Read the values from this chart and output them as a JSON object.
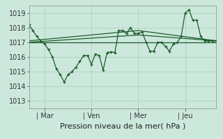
{
  "background_color": "#cce8dc",
  "grid_color": "#aaccbb",
  "line_color": "#1a5c28",
  "xlabel": "Pression niveau de la mer( hPa )",
  "ylim": [
    1012.5,
    1019.5
  ],
  "yticks": [
    1013,
    1014,
    1015,
    1016,
    1017,
    1018,
    1019
  ],
  "xtick_labels": [
    "| Mar",
    "| Ven",
    "| Mer",
    "| Jeu"
  ],
  "xtick_positions": [
    16,
    64,
    112,
    160
  ],
  "xlim": [
    0,
    192
  ],
  "series_x": [
    0,
    4,
    8,
    12,
    16,
    20,
    24,
    28,
    32,
    36,
    40,
    44,
    48,
    52,
    56,
    60,
    64,
    68,
    72,
    76,
    80,
    84,
    88,
    92,
    96,
    100,
    104,
    108,
    112,
    116,
    120,
    124,
    128,
    132,
    136,
    140,
    144,
    148,
    152,
    156,
    160,
    164,
    168,
    172,
    176,
    180,
    184,
    188,
    192
  ],
  "series_y": [
    1018.2,
    1017.8,
    1017.4,
    1017.1,
    1016.9,
    1016.5,
    1016.0,
    1015.2,
    1014.8,
    1014.3,
    1014.8,
    1015.0,
    1015.3,
    1015.7,
    1016.1,
    1016.1,
    1015.5,
    1016.2,
    1016.1,
    1015.1,
    1016.3,
    1016.35,
    1016.3,
    1017.8,
    1017.8,
    1017.6,
    1018.0,
    1017.6,
    1017.6,
    1017.7,
    1017.0,
    1016.4,
    1016.4,
    1017.0,
    1017.0,
    1016.7,
    1016.4,
    1016.9,
    1017.0,
    1017.4,
    1019.0,
    1019.2,
    1018.5,
    1018.5,
    1017.4,
    1017.1,
    1017.1,
    1017.1,
    1017.1
  ],
  "flat_line": [
    [
      0,
      1017.0
    ],
    [
      192,
      1017.0
    ]
  ],
  "diag1_line": [
    [
      0,
      1017.0
    ],
    [
      112,
      1017.5
    ],
    [
      192,
      1017.1
    ]
  ],
  "diag2_line": [
    [
      0,
      1017.1
    ],
    [
      112,
      1017.8
    ],
    [
      192,
      1017.1
    ]
  ],
  "xlabel_fontsize": 8,
  "ytick_fontsize": 7,
  "xtick_fontsize": 7
}
